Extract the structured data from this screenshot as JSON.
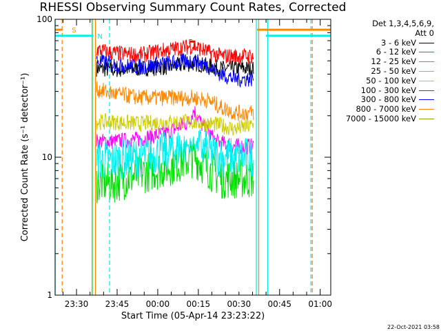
{
  "chart_data": {
    "type": "line",
    "title": "RHESSI Observing Summary Count Rates, Corrected",
    "xlabel": "Start Time (05-Apr-14 23:23:22)",
    "ylabel": "Corrected Count Rate (s⁻¹ detector⁻¹)",
    "yscale": "log",
    "ylim": [
      1,
      100
    ],
    "xlim_minutes_from_start": [
      -1.3,
      100.5
    ],
    "y_tick_labels": [
      "1",
      "10",
      "100"
    ],
    "x_tick_labels": [
      "23:30",
      "23:45",
      "00:00",
      "00:15",
      "00:30",
      "00:45",
      "01:00"
    ],
    "x_tick_minutes": [
      6.6,
      21.6,
      36.6,
      51.6,
      66.6,
      81.6,
      96.6
    ],
    "legend_header": [
      "Det 1,3,4,5,6,9,",
      "Att 0"
    ],
    "series": [
      {
        "name": "3 - 6 keV",
        "color": "#000000",
        "points": [
          [
            14,
            44
          ],
          [
            20,
            43
          ],
          [
            30,
            44
          ],
          [
            40,
            45
          ],
          [
            50,
            48
          ],
          [
            55,
            46
          ],
          [
            60,
            44
          ],
          [
            65,
            44
          ],
          [
            72,
            44
          ]
        ]
      },
      {
        "name": "6 - 12 keV",
        "color": "#ff00ff",
        "points": [
          [
            14,
            13
          ],
          [
            20,
            13
          ],
          [
            30,
            13.5
          ],
          [
            40,
            15
          ],
          [
            48,
            18
          ],
          [
            50,
            22
          ],
          [
            53,
            17
          ],
          [
            58,
            13
          ],
          [
            65,
            12
          ],
          [
            72,
            12
          ]
        ]
      },
      {
        "name": "12 - 25 keV",
        "color": "#00dd00",
        "points": [
          [
            14,
            6.5
          ],
          [
            20,
            6.5
          ],
          [
            30,
            7.5
          ],
          [
            40,
            8.5
          ],
          [
            50,
            10
          ],
          [
            56,
            8
          ],
          [
            60,
            7
          ],
          [
            65,
            7
          ],
          [
            72,
            7
          ]
        ]
      },
      {
        "name": "25 - 50 keV",
        "color": "#00eeee",
        "points": [
          [
            14,
            9.5
          ],
          [
            20,
            9.5
          ],
          [
            30,
            10
          ],
          [
            40,
            11
          ],
          [
            50,
            12.5
          ],
          [
            55,
            11
          ],
          [
            60,
            10
          ],
          [
            65,
            10
          ],
          [
            72,
            10
          ]
        ]
      },
      {
        "name": "50 - 100 keV",
        "color": "#cccc00",
        "points": [
          [
            14,
            18
          ],
          [
            20,
            18
          ],
          [
            30,
            17.5
          ],
          [
            40,
            18
          ],
          [
            50,
            18
          ],
          [
            56,
            17.5
          ],
          [
            60,
            17
          ],
          [
            65,
            16
          ],
          [
            72,
            17
          ]
        ]
      },
      {
        "name": "100 - 300 keV",
        "color": "#ff0000",
        "points": [
          [
            14,
            60
          ],
          [
            20,
            57
          ],
          [
            30,
            55
          ],
          [
            40,
            60
          ],
          [
            50,
            64
          ],
          [
            55,
            58
          ],
          [
            60,
            54
          ],
          [
            65,
            54
          ],
          [
            72,
            54
          ]
        ]
      },
      {
        "name": "300 - 800 keV",
        "color": "#0000ff",
        "points": [
          [
            14,
            50
          ],
          [
            20,
            47
          ],
          [
            30,
            45
          ],
          [
            40,
            48
          ],
          [
            50,
            50
          ],
          [
            55,
            46
          ],
          [
            60,
            40
          ],
          [
            65,
            37
          ],
          [
            72,
            37
          ]
        ]
      },
      {
        "name": "800 - 7000 keV",
        "color": "#ff8800",
        "points": [
          [
            14,
            31
          ],
          [
            20,
            29
          ],
          [
            30,
            27
          ],
          [
            40,
            27
          ],
          [
            50,
            27
          ],
          [
            55,
            26
          ],
          [
            60,
            23
          ],
          [
            65,
            21
          ],
          [
            72,
            21
          ]
        ]
      },
      {
        "name": "7000 - 15000 keV",
        "color": "#999900",
        "points": []
      }
    ],
    "flag_bars": [
      {
        "label": "S",
        "color": "#ff8800",
        "y": 84,
        "x_start": -1.3,
        "x_end": 1.3
      },
      {
        "label": "",
        "color": "#ff8800",
        "y": 84,
        "x_start": 73.3,
        "x_end": 100.5
      },
      {
        "label": "N",
        "color": "#00eeee",
        "y": 76,
        "x_start": -1.3,
        "x_end": 12.8
      },
      {
        "label": "",
        "color": "#00eeee",
        "y": 76,
        "x_start": 76.6,
        "x_end": 100.5
      },
      {
        "label": "F",
        "color": "#ff0000",
        "y": 69,
        "x_start": 48.5,
        "x_end": 50.5
      }
    ],
    "vertical_lines": [
      {
        "x": -1.3,
        "color": "#00eeee",
        "style": "solid"
      },
      {
        "x": 1.3,
        "color": "#ff8800",
        "style": "dashed"
      },
      {
        "x": 12.4,
        "color": "#00dd00",
        "style": "solid"
      },
      {
        "x": 13.6,
        "color": "#ff8800",
        "style": "solid"
      },
      {
        "x": 18.8,
        "color": "#00eeee",
        "style": "dashed"
      },
      {
        "x": 73.0,
        "color": "#00eeee",
        "style": "solid"
      },
      {
        "x": 73.9,
        "color": "#ff8800",
        "style": "solid"
      },
      {
        "x": 77.2,
        "color": "#00eeee",
        "style": "solid"
      },
      {
        "x": 93.7,
        "color": "#ff8800",
        "style": "dashed"
      },
      {
        "x": 93.2,
        "color": "#00eeee",
        "style": "dashed"
      }
    ],
    "grid": false,
    "legend_position": "right"
  },
  "footer": "22-Oct-2021 03:58"
}
